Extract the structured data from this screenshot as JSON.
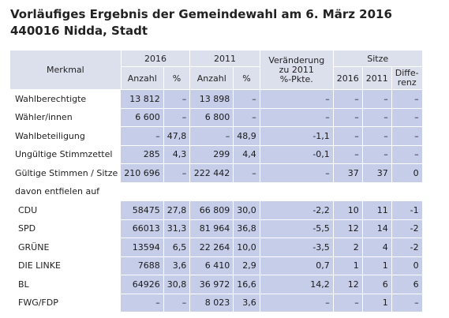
{
  "title": {
    "line1": "Vorläufiges Ergebnis der Gemeindewahl am 6. März 2016",
    "line2": "440016 Nidda, Stadt"
  },
  "header": {
    "merkmal": "Merkmal",
    "y2016": "2016",
    "y2011": "2011",
    "veraenderung_l1": "Veränderung",
    "veraenderung_l2": "zu 2011",
    "veraenderung_l3": "%-Pkte.",
    "sitze": "Sitze",
    "anzahl": "Anzahl",
    "pct": "%",
    "s2016": "2016",
    "s2011": "2011",
    "diff_l1": "Diffe-",
    "diff_l2": "renz"
  },
  "rows": [
    {
      "label": "Wahlberechtigte",
      "a16": "13 812",
      "p16": "–",
      "a11": "13 898",
      "p11": "–",
      "ver": "–",
      "s16": "–",
      "s11": "–",
      "diff": "–"
    },
    {
      "label": "Wähler/innen",
      "a16": "6 600",
      "p16": "–",
      "a11": "6 800",
      "p11": "–",
      "ver": "–",
      "s16": "–",
      "s11": "–",
      "diff": "–"
    },
    {
      "label": "Wahlbeteiligung",
      "a16": "–",
      "p16": "47,8",
      "a11": "–",
      "p11": "48,9",
      "ver": "-1,1",
      "s16": "–",
      "s11": "–",
      "diff": "–"
    },
    {
      "label": "Ungültige Stimmzettel",
      "a16": "285",
      "p16": "4,3",
      "a11": "299",
      "p11": "4,4",
      "ver": "-0,1",
      "s16": "–",
      "s11": "–",
      "diff": "–"
    },
    {
      "label": "Gültige Stimmen / Sitze",
      "a16": "210 696",
      "p16": "–",
      "a11": "222 442",
      "p11": "–",
      "ver": "–",
      "s16": "37",
      "s11": "37",
      "diff": "0"
    }
  ],
  "section_label": "davon entfielen auf",
  "parties": [
    {
      "label": "CDU",
      "a16": "58475",
      "p16": "27,8",
      "a11": "66 809",
      "p11": "30,0",
      "ver": "-2,2",
      "s16": "10",
      "s11": "11",
      "diff": "-1"
    },
    {
      "label": "SPD",
      "a16": "66013",
      "p16": "31,3",
      "a11": "81 964",
      "p11": "36,8",
      "ver": "-5,5",
      "s16": "12",
      "s11": "14",
      "diff": "-2"
    },
    {
      "label": "GRÜNE",
      "a16": "13594",
      "p16": "6,5",
      "a11": "22 264",
      "p11": "10,0",
      "ver": "-3,5",
      "s16": "2",
      "s11": "4",
      "diff": "-2"
    },
    {
      "label": "DIE LINKE",
      "a16": "7688",
      "p16": "3,6",
      "a11": "6 410",
      "p11": "2,9",
      "ver": "0,7",
      "s16": "1",
      "s11": "1",
      "diff": "0"
    },
    {
      "label": "BL",
      "a16": "64926",
      "p16": "30,8",
      "a11": "36 972",
      "p11": "16,6",
      "ver": "14,2",
      "s16": "12",
      "s11": "6",
      "diff": "6"
    },
    {
      "label": "FWG/FDP",
      "a16": "–",
      "p16": "–",
      "a11": "8 023",
      "p11": "3,6",
      "ver": "–",
      "s16": "–",
      "s11": "1",
      "diff": "–"
    }
  ],
  "colors": {
    "header_bg": "#dce0ed",
    "cell_bg": "#c6cde9"
  }
}
